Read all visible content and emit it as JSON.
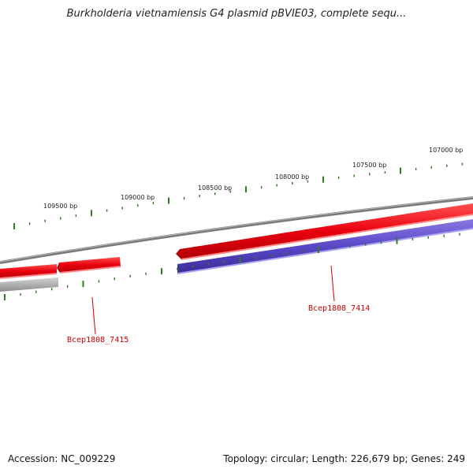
{
  "title": "Burkholderia vietnamiensis G4 plasmid pBVIE03, complete sequ...",
  "footer": {
    "accession": "Accession: NC_009229",
    "summary": "Topology: circular; Length: 226,679 bp; Genes: 249"
  },
  "scale_labels": [
    "109500 bp",
    "109000 bp",
    "108500 bp",
    "108000 bp",
    "107500 bp",
    "107000 bp"
  ],
  "gene_labels": [
    "Bcep1808_7415",
    "Bcep1808_7414"
  ],
  "colors": {
    "backbone": "#7a7a7a",
    "forward_gene": "#e8000d",
    "reverse_gene": "#5a48c8",
    "grey_gene": "#b4b4b4",
    "tick": "#2e7d1e",
    "label": "#cc0000"
  }
}
